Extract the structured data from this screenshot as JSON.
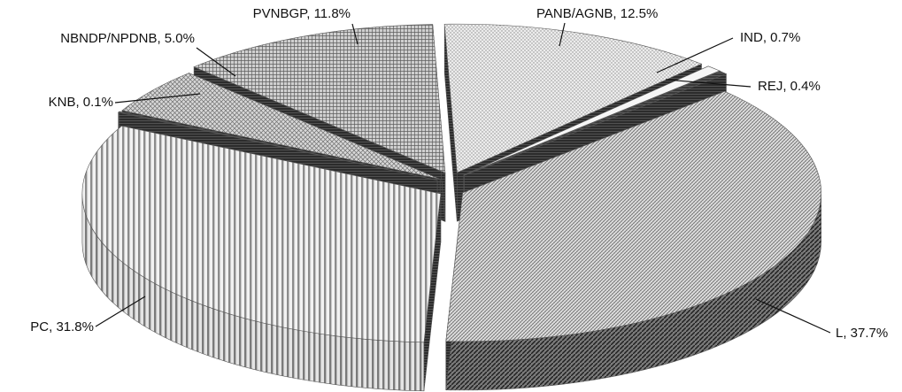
{
  "chart_data": {
    "type": "pie",
    "style": "3d-exploded",
    "title": "",
    "legend": "none",
    "slices": [
      {
        "label": "PANB/AGNB",
        "value": 12.5,
        "text": "PANB/AGNB, 12.5%",
        "pattern": "dots",
        "color": "#e6e6e6"
      },
      {
        "label": "IND",
        "value": 0.7,
        "text": "IND, 0.7%",
        "pattern": "plain",
        "color": "#f4f4f4"
      },
      {
        "label": "REJ",
        "value": 0.4,
        "text": "REJ, 0.4%",
        "pattern": "dark",
        "color": "#444444"
      },
      {
        "label": "L",
        "value": 37.7,
        "text": "L, 37.7%",
        "pattern": "fine-diagonal",
        "color": "#c8c8c8"
      },
      {
        "label": "PC",
        "value": 31.8,
        "text": "PC, 31.8%",
        "pattern": "vertical-stripes",
        "color": "#d2d2d2"
      },
      {
        "label": "KNB",
        "value": 0.1,
        "text": "KNB, 0.1%",
        "pattern": "dark",
        "color": "#333333"
      },
      {
        "label": "NBNDP/NPDNB",
        "value": 5.0,
        "text": "NBNDP/NPDNB, 5.0%",
        "pattern": "cross-hatch",
        "color": "#bdbdbd"
      },
      {
        "label": "PVNBGP",
        "value": 11.8,
        "text": "PVNBGP, 11.8%",
        "pattern": "grid",
        "color": "#a8a8a8"
      }
    ]
  }
}
